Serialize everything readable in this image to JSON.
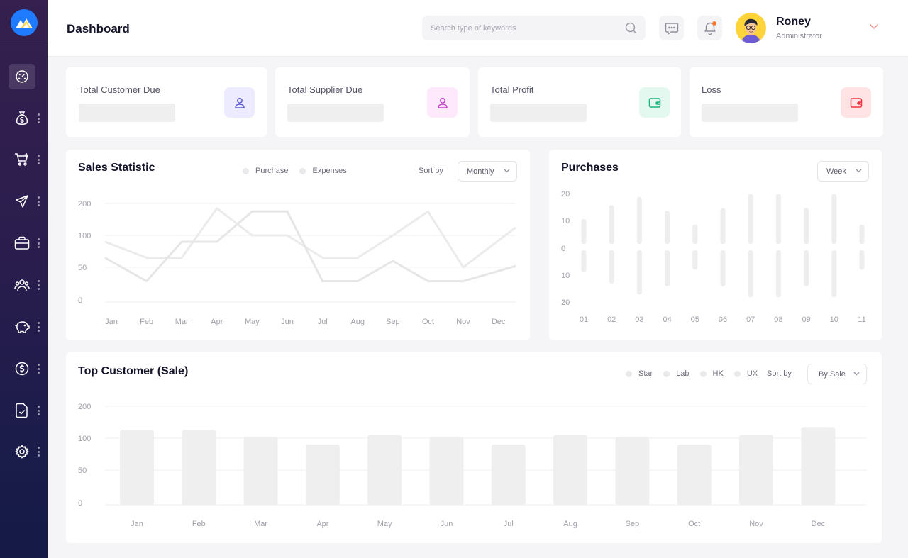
{
  "header": {
    "title": "Dashboard",
    "search_placeholder": "Search type of keywords",
    "user": {
      "name": "Roney",
      "role": "Administrator"
    }
  },
  "sidebar": {
    "items": [
      {
        "icon": "dashboard-gauge-icon",
        "active": true
      },
      {
        "icon": "money-bag-icon"
      },
      {
        "icon": "cart-add-icon"
      },
      {
        "icon": "paper-plane-icon"
      },
      {
        "icon": "briefcase-icon"
      },
      {
        "icon": "users-icon"
      },
      {
        "icon": "piggy-bank-icon"
      },
      {
        "icon": "dollar-circle-icon"
      },
      {
        "icon": "document-check-icon"
      },
      {
        "icon": "settings-gear-icon"
      }
    ]
  },
  "stats": [
    {
      "label": "Total Customer Due",
      "icon": "user-icon",
      "color": "#5b5bd6",
      "bg": "#ecebff"
    },
    {
      "label": "Total Supplier Due",
      "icon": "user-icon",
      "color": "#c040c8",
      "bg": "#fde9fb"
    },
    {
      "label": "Total Profit",
      "icon": "wallet-icon",
      "color": "#19b27a",
      "bg": "#e3f8ee"
    },
    {
      "label": "Loss",
      "icon": "wallet-icon",
      "color": "#f0323c",
      "bg": "#ffe3e5"
    }
  ],
  "sales_statistic": {
    "title": "Sales Statistic",
    "legend": [
      "Purchase",
      "Expenses"
    ],
    "sort_label": "Sort by",
    "sort_value": "Monthly"
  },
  "purchases": {
    "title": "Purchases",
    "sort_value": "Week"
  },
  "top_customer": {
    "title": "Top Customer (Sale)",
    "legend": [
      "Star",
      "Lab",
      "HK",
      "UX"
    ],
    "sort_label": "Sort by",
    "sort_value": "By Sale"
  },
  "chart_data": [
    {
      "type": "line",
      "title": "Sales Statistic",
      "categories": [
        "Jan",
        "Feb",
        "Mar",
        "Apr",
        "May",
        "Jun",
        "Jul",
        "Aug",
        "Sep",
        "Oct",
        "Nov",
        "Dec"
      ],
      "y_ticks": [
        "200",
        "100",
        "50",
        "0"
      ],
      "tick_values": [
        200,
        100,
        50,
        0
      ],
      "series": [
        {
          "name": "Purchase",
          "values": [
            90,
            65,
            65,
            185,
            100,
            100,
            65,
            65,
            100,
            175,
            50,
            125
          ]
        },
        {
          "name": "Expenses",
          "values": [
            65,
            30,
            90,
            90,
            175,
            175,
            30,
            30,
            60,
            30,
            30,
            52
          ]
        }
      ],
      "grid": true
    },
    {
      "type": "bar",
      "title": "Purchases",
      "categories": [
        "01",
        "02",
        "03",
        "04",
        "05",
        "06",
        "07",
        "08",
        "09",
        "10",
        "11"
      ],
      "y_ticks": [
        "20",
        "10",
        "0",
        "10",
        "20"
      ],
      "tick_values": [
        20,
        10,
        0,
        -10,
        -20
      ],
      "series": [
        {
          "values": [
            9,
            14,
            17,
            12,
            7,
            13,
            18,
            18,
            13,
            18,
            7
          ]
        },
        {
          "values": [
            -8,
            -12,
            -16,
            -13,
            -7,
            -13,
            -17,
            -17,
            -13,
            -17,
            -7
          ]
        }
      ],
      "grid": false
    },
    {
      "type": "bar",
      "title": "Top Customer (Sale)",
      "categories": [
        "Jan",
        "Feb",
        "Mar",
        "Apr",
        "May",
        "Jun",
        "Jul",
        "Aug",
        "Sep",
        "Oct",
        "Nov",
        "Dec"
      ],
      "y_ticks": [
        "200",
        "100",
        "50",
        "0"
      ],
      "tick_values": [
        200,
        100,
        50,
        0
      ],
      "values": [
        125,
        125,
        105,
        90,
        110,
        105,
        90,
        110,
        105,
        90,
        110,
        135
      ],
      "grid": true
    }
  ]
}
